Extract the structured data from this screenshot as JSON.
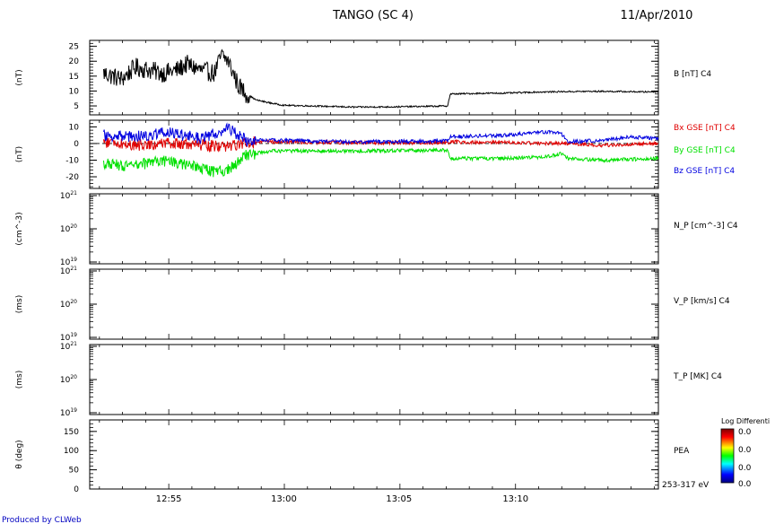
{
  "header": {
    "title": "TANGO (SC 4)",
    "date": "11/Apr/2010"
  },
  "footer": {
    "credit": "Produced by CLWeb"
  },
  "colors": {
    "black": "#000000",
    "red": "#e00000",
    "green": "#00e000",
    "blue": "#0000e0",
    "credit_blue": "#0000c0"
  },
  "colorbar": {
    "title": "Log Differenti",
    "tick_labels": [
      "0.0",
      "0.0",
      "0.0",
      "0.0"
    ],
    "scale": "rainbow (blue low → red high)"
  },
  "chart_data": [
    {
      "type": "line",
      "ylabel": "(nT)",
      "ylim": [
        2,
        27
      ],
      "yticks": [
        5,
        10,
        15,
        20,
        25
      ],
      "series": [
        {
          "name": "B [nT] C4",
          "color": "#000000",
          "points": [
            [
              12.87,
              16
            ],
            [
              12.883,
              14
            ],
            [
              12.893,
              18
            ],
            [
              12.903,
              17
            ],
            [
              12.913,
              16
            ],
            [
              12.923,
              17
            ],
            [
              12.93,
              19
            ],
            [
              12.94,
              17
            ],
            [
              12.95,
              16
            ],
            [
              12.955,
              22
            ],
            [
              12.96,
              20
            ],
            [
              12.967,
              12
            ],
            [
              12.973,
              9
            ],
            [
              12.98,
              7
            ],
            [
              12.99,
              6
            ],
            [
              13.0,
              5.2
            ],
            [
              13.02,
              5
            ],
            [
              13.05,
              4.6
            ],
            [
              13.08,
              4.7
            ],
            [
              13.11,
              4.9
            ],
            [
              13.118,
              5
            ],
            [
              13.12,
              9
            ],
            [
              13.14,
              9.2
            ],
            [
              13.16,
              9.3
            ],
            [
              13.18,
              9.6
            ],
            [
              13.2,
              9.8
            ],
            [
              13.23,
              9.9
            ],
            [
              13.26,
              9.7
            ],
            [
              13.27,
              9.8
            ]
          ]
        }
      ]
    },
    {
      "type": "line",
      "ylabel": "(nT)",
      "ylim": [
        -27,
        14
      ],
      "yticks": [
        -20,
        -10,
        0,
        10
      ],
      "series": [
        {
          "name": "Bx GSE [nT] C4",
          "color": "#e00000",
          "points": [
            [
              12.87,
              1
            ],
            [
              12.893,
              -1
            ],
            [
              12.915,
              0
            ],
            [
              12.94,
              -1
            ],
            [
              12.96,
              -2
            ],
            [
              12.973,
              1
            ],
            [
              12.99,
              1
            ],
            [
              13.05,
              0.5
            ],
            [
              13.118,
              0.5
            ],
            [
              13.12,
              1
            ],
            [
              13.16,
              0.5
            ],
            [
              13.2,
              0
            ],
            [
              13.23,
              -1
            ],
            [
              13.27,
              0
            ]
          ]
        },
        {
          "name": "By GSE [nT] C4",
          "color": "#00e000",
          "points": [
            [
              12.87,
              -12
            ],
            [
              12.89,
              -14
            ],
            [
              12.91,
              -10
            ],
            [
              12.93,
              -13
            ],
            [
              12.95,
              -17
            ],
            [
              12.96,
              -16
            ],
            [
              12.973,
              -7
            ],
            [
              12.99,
              -4.5
            ],
            [
              13.05,
              -4.5
            ],
            [
              13.118,
              -4
            ],
            [
              13.12,
              -9
            ],
            [
              13.16,
              -9
            ],
            [
              13.19,
              -8
            ],
            [
              13.2,
              -6
            ],
            [
              13.205,
              -9
            ],
            [
              13.23,
              -10
            ],
            [
              13.27,
              -9
            ]
          ]
        },
        {
          "name": "Bz GSE [nT] C4",
          "color": "#0000e0",
          "points": [
            [
              12.87,
              5
            ],
            [
              12.893,
              4
            ],
            [
              12.915,
              7
            ],
            [
              12.94,
              3
            ],
            [
              12.96,
              9
            ],
            [
              12.973,
              2
            ],
            [
              12.99,
              2
            ],
            [
              13.05,
              1
            ],
            [
              13.118,
              1.5
            ],
            [
              13.12,
              4
            ],
            [
              13.16,
              5
            ],
            [
              13.19,
              7
            ],
            [
              13.2,
              6
            ],
            [
              13.205,
              1
            ],
            [
              13.23,
              2
            ],
            [
              13.25,
              4
            ],
            [
              13.27,
              3
            ]
          ]
        }
      ]
    },
    {
      "type": "line",
      "ylabel": "(cm^-3)",
      "ylim": [
        "10^19",
        "10^21"
      ],
      "ytick_labels": [
        "10^21",
        "10^20",
        "10^19"
      ],
      "scale": "log",
      "series": [
        {
          "name": "N_P [cm^-3] C4",
          "points": []
        }
      ]
    },
    {
      "type": "line",
      "ylabel": "(ms)",
      "ylim": [
        "10^19",
        "10^21"
      ],
      "ytick_labels": [
        "10^21",
        "10^20",
        "10^19"
      ],
      "scale": "log",
      "series": [
        {
          "name": "V_P [km/s] C4",
          "points": []
        }
      ]
    },
    {
      "type": "line",
      "ylabel": "(ms)",
      "ylim": [
        "10^19",
        "10^21"
      ],
      "ytick_labels": [
        "10^21",
        "10^20",
        "10^19"
      ],
      "scale": "log",
      "series": [
        {
          "name": "T_P [MK] C4",
          "points": []
        }
      ]
    },
    {
      "type": "heatmap",
      "ylabel": "θ (deg)",
      "ylim": [
        0,
        180
      ],
      "yticks": [
        0,
        50,
        100,
        150
      ],
      "series": [
        {
          "name": "PEA",
          "sub_label": "253-317 eV",
          "points": []
        }
      ]
    }
  ],
  "x_axis": {
    "xlim": [
      12.86,
      13.27
    ],
    "tick_labels": [
      "12:55",
      "13:00",
      "13:05",
      "13:10"
    ],
    "tick_values": [
      12.917,
      13.0,
      13.083,
      13.167
    ]
  }
}
